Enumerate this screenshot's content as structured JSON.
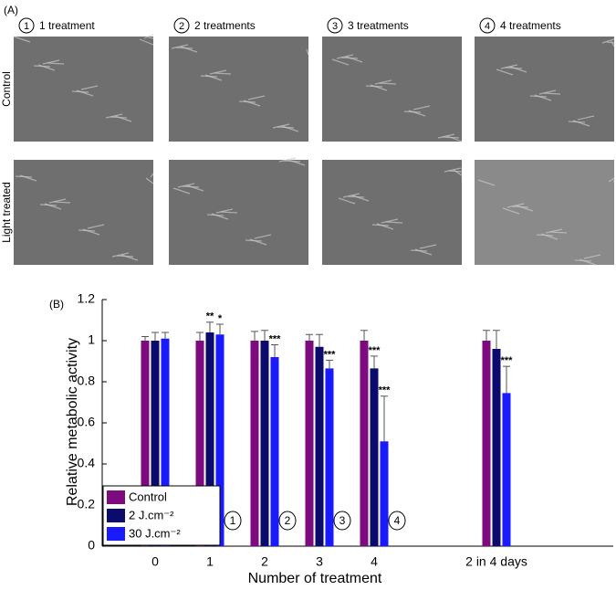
{
  "panel_a": {
    "label": "(A)",
    "columns": [
      {
        "number": "1",
        "text": "1 treatment"
      },
      {
        "number": "2",
        "text": "2 treatments"
      },
      {
        "number": "3",
        "text": "3 treatments"
      },
      {
        "number": "4",
        "text": "4 treatments"
      }
    ],
    "rows": [
      "Control",
      "Light treated"
    ]
  },
  "chart_data": {
    "type": "bar",
    "panel_label": "(B)",
    "x_label": "Number of treatment",
    "y_label": "Relative metabolic activity",
    "categories": [
      "0",
      "1",
      "2",
      "3",
      "4",
      "2 in 4 days"
    ],
    "ylim": [
      0,
      1.2
    ],
    "yticks": [
      0,
      0.2,
      0.4,
      0.6,
      0.8,
      1,
      1.2
    ],
    "legend": "lower left",
    "series": [
      {
        "name": "Control",
        "color": "#7d0a7e",
        "values": [
          1,
          1,
          1,
          1,
          1,
          1
        ],
        "errors": [
          0.02,
          0.04,
          0.045,
          0.03,
          0.05,
          0.05
        ],
        "significance": [
          null,
          null,
          null,
          null,
          null,
          null
        ]
      },
      {
        "name": "2 J.cm⁻²",
        "color": "#0b0b6e",
        "values": [
          1,
          1.04,
          1,
          0.97,
          0.865,
          0.96
        ],
        "errors": [
          0.04,
          0.05,
          0.05,
          0.06,
          0.06,
          0.09
        ],
        "significance": [
          null,
          "**",
          null,
          null,
          "***",
          null
        ]
      },
      {
        "name": "30 J.cm⁻²",
        "color": "#1a1aff",
        "values": [
          1.01,
          1.03,
          0.92,
          0.865,
          0.51,
          0.745
        ],
        "errors": [
          0.03,
          0.05,
          0.06,
          0.04,
          0.22,
          0.13
        ],
        "significance": [
          null,
          "*",
          "***",
          "***",
          "***",
          "***"
        ]
      }
    ],
    "circle_labels": [
      "1",
      "2",
      "3",
      "4"
    ]
  }
}
